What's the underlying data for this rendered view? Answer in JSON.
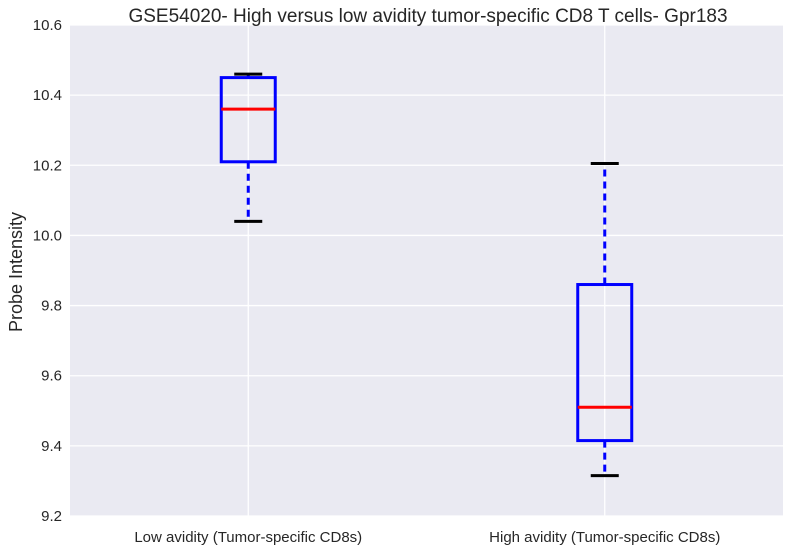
{
  "chart_data": {
    "type": "box",
    "title": "GSE54020- High versus low avidity tumor-specific CD8 T cells- Gpr183",
    "xlabel": "",
    "ylabel": "Probe Intensity",
    "ylim": [
      9.2,
      10.6
    ],
    "yticks": [
      "9.2",
      "9.4",
      "9.6",
      "9.8",
      "10.0",
      "10.2",
      "10.4",
      "10.6"
    ],
    "grid": true,
    "categories": [
      "Low avidity (Tumor-specific CD8s)",
      "High avidity (Tumor-specific CD8s)"
    ],
    "boxes": [
      {
        "whisker_low": 10.04,
        "q1": 10.21,
        "median": 10.36,
        "q3": 10.45,
        "whisker_high": 10.46
      },
      {
        "whisker_low": 9.315,
        "q1": 9.415,
        "median": 9.51,
        "q3": 9.86,
        "whisker_high": 10.205
      }
    ],
    "colors": {
      "background": "#eaeaf2",
      "grid": "#ffffff",
      "box": "#0000ff",
      "median": "#ff0000",
      "cap": "#000000",
      "whisker": "#0000ff"
    }
  }
}
